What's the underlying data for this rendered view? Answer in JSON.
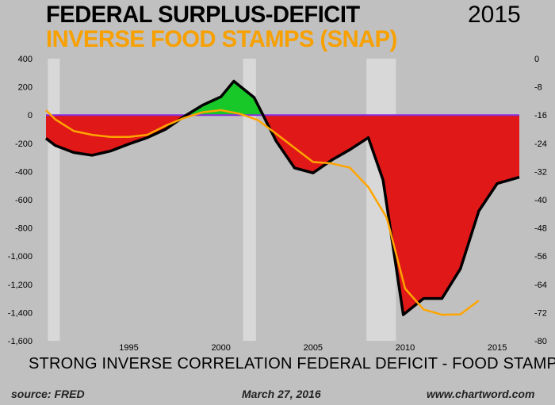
{
  "header": {
    "title_line1": "FEDERAL SURPLUS-DEFICIT",
    "title_line2": "INVERSE FOOD STAMPS (SNAP)",
    "year": "2015"
  },
  "subtitle": "STRONG INVERSE CORRELATION FEDERAL DEFICIT - FOOD STAMPS",
  "footer": {
    "source": "source: FRED",
    "date": "March 27, 2016",
    "site": "www.chartword.com"
  },
  "colors": {
    "background": "#c0c0c0",
    "deficit_fill": "#e01818",
    "surplus_fill": "#18c828",
    "deficit_line": "#000000",
    "snap_line": "#ffa500",
    "recession_band": "#d8d8d8",
    "zero_line": "#8a2be2"
  },
  "chart_data": {
    "type": "area",
    "xlim": [
      1990.5,
      2016.2
    ],
    "x_ticks": [
      1995,
      2000,
      2005,
      2010,
      2015
    ],
    "x_tick_labels": [
      "1995",
      "2000",
      "2005",
      "2010",
      "2015"
    ],
    "y_left": {
      "lim": [
        -1600,
        400
      ],
      "ticks": [
        400,
        200,
        0,
        -200,
        -400,
        -600,
        -800,
        -1000,
        -1200,
        -1400,
        -1600
      ],
      "tick_labels": [
        "400",
        "200",
        "0",
        "-200",
        "-400",
        "-600",
        "-800",
        "-1,000",
        "-1,200",
        "-1,400",
        "-1,600"
      ]
    },
    "y_right": {
      "lim": [
        -80,
        0
      ],
      "ticks": [
        0,
        -8,
        -16,
        -24,
        -32,
        -40,
        -48,
        -56,
        -64,
        -72,
        -80
      ],
      "tick_labels": [
        "0",
        "-8",
        "-16",
        "-24",
        "-32",
        "-40",
        "-48",
        "-56",
        "-64",
        "-72",
        "-80"
      ]
    },
    "recessions": [
      [
        1990.6,
        1991.25
      ],
      [
        2001.2,
        2001.9
      ],
      [
        2007.9,
        2009.5
      ]
    ],
    "series": [
      {
        "axis": "left",
        "x": [
          1990.5,
          1991,
          1992,
          1993,
          1994,
          1995,
          1996,
          1997,
          1998,
          1999,
          2000,
          2000.7,
          2001.8,
          2003,
          2004,
          2005,
          2006,
          2007,
          2008,
          2008.8,
          2009.9,
          2011,
          2012,
          2013,
          2014,
          2015,
          2016.2
        ],
        "values": [
          -165,
          -215,
          -265,
          -285,
          -255,
          -205,
          -160,
          -100,
          -10,
          70,
          130,
          240,
          125,
          -185,
          -375,
          -410,
          -320,
          -245,
          -160,
          -460,
          -1415,
          -1300,
          -1300,
          -1090,
          -680,
          -485,
          -440
        ]
      },
      {
        "axis": "right",
        "x": [
          1990.5,
          1991,
          1992,
          1993,
          1994,
          1995,
          1996,
          1997,
          1998,
          1999,
          2000,
          2001,
          2002,
          2003,
          2004,
          2005,
          2006,
          2007,
          2008,
          2009,
          2010,
          2011,
          2012,
          2013,
          2014
        ],
        "values": [
          -14.6,
          -17.2,
          -20.5,
          -21.6,
          -22.2,
          -22.2,
          -21.6,
          -19.0,
          -16.8,
          -15.2,
          -14.6,
          -15.6,
          -17.4,
          -21.3,
          -25.3,
          -29.3,
          -29.7,
          -30.9,
          -36.4,
          -45.1,
          -65.2,
          -71.1,
          -72.6,
          -72.5,
          -68.6
        ]
      }
    ]
  }
}
